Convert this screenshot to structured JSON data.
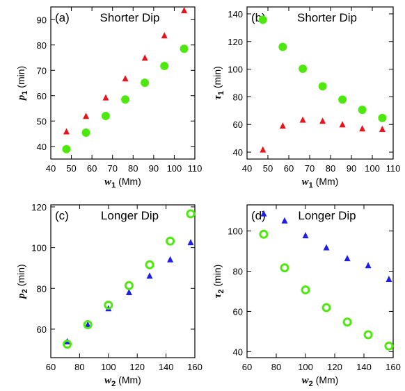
{
  "colors": {
    "triangle_red": "#e8141b",
    "triangle_blue": "#1e1ee6",
    "circle_green": "#4ee80f",
    "axis": "#000000"
  },
  "chart_data": [
    {
      "panel": "(a)",
      "title": "Shorter Dip",
      "type": "scatter",
      "xlabel": {
        "symbol": "w",
        "sub": "1",
        "unit": " (Mm)"
      },
      "ylabel": {
        "symbol": "p",
        "sub": "1",
        "unit": " (min)"
      },
      "xlim": [
        40,
        110
      ],
      "ylim": [
        35,
        95
      ],
      "xticks": [
        40,
        50,
        60,
        70,
        80,
        90,
        100,
        110
      ],
      "yticks": [
        40,
        50,
        60,
        70,
        80,
        90
      ],
      "series": [
        {
          "marker": "triangle",
          "color": "#e8141b",
          "x": [
            47.6,
            57.1,
            66.7,
            76.2,
            85.7,
            95.2,
            104.8
          ],
          "y": [
            45.7,
            51.8,
            59.1,
            66.6,
            74.8,
            83.6,
            93.5
          ]
        },
        {
          "marker": "filled-circle",
          "color": "#4ee80f",
          "x": [
            47.6,
            57.1,
            66.7,
            76.2,
            85.7,
            95.2,
            104.8
          ],
          "y": [
            38.9,
            45.4,
            52.0,
            58.5,
            65.1,
            71.7,
            78.5
          ]
        }
      ]
    },
    {
      "panel": "(b)",
      "title": "Shorter Dip",
      "type": "scatter",
      "xlabel": {
        "symbol": "w",
        "sub": "1",
        "unit": " (Mm)"
      },
      "ylabel": {
        "symbol": "τ",
        "sub": "1",
        "unit": " (min)"
      },
      "xlim": [
        40,
        110
      ],
      "ylim": [
        35,
        145
      ],
      "xticks": [
        40,
        50,
        60,
        70,
        80,
        90,
        100,
        110
      ],
      "yticks": [
        40,
        60,
        80,
        100,
        120,
        140
      ],
      "series": [
        {
          "marker": "triangle",
          "color": "#e8141b",
          "x": [
            47.6,
            57.1,
            66.7,
            76.2,
            85.7,
            95.2,
            104.8
          ],
          "y": [
            41.5,
            58.8,
            63.1,
            62.3,
            59.7,
            56.8,
            56.4
          ]
        },
        {
          "marker": "filled-circle",
          "color": "#4ee80f",
          "x": [
            47.6,
            57.1,
            66.7,
            76.2,
            85.7,
            95.2,
            104.8
          ],
          "y": [
            135.7,
            116.1,
            100.3,
            87.6,
            78.0,
            70.6,
            64.7
          ]
        }
      ]
    },
    {
      "panel": "(c)",
      "title": "Longer Dip",
      "type": "scatter",
      "xlabel": {
        "symbol": "w",
        "sub": "2",
        "unit": " (Mm)"
      },
      "ylabel": {
        "symbol": "p",
        "sub": "2",
        "unit": " (min)"
      },
      "xlim": [
        60,
        160
      ],
      "ylim": [
        46,
        121
      ],
      "xticks": [
        60,
        80,
        100,
        120,
        140,
        160
      ],
      "yticks": [
        60,
        80,
        100,
        120
      ],
      "series": [
        {
          "marker": "triangle",
          "color": "#1e1ee6",
          "x": [
            71.4,
            85.7,
            100.0,
            114.3,
            128.6,
            142.9,
            157.1
          ],
          "y": [
            53.8,
            62.0,
            70.0,
            77.9,
            86.0,
            94.0,
            102.4
          ]
        },
        {
          "marker": "open-circle",
          "color": "#4ee80f",
          "x": [
            71.4,
            85.7,
            100.0,
            114.3,
            128.6,
            142.9,
            157.1
          ],
          "y": [
            52.6,
            62.2,
            71.8,
            81.4,
            91.6,
            103.2,
            116.6
          ]
        }
      ]
    },
    {
      "panel": "(d)",
      "title": "Longer Dip",
      "type": "scatter",
      "xlabel": {
        "symbol": "w",
        "sub": "2",
        "unit": " (Mm)"
      },
      "ylabel": {
        "symbol": "τ",
        "sub": "2",
        "unit": " (min)"
      },
      "xlim": [
        60,
        160
      ],
      "ylim": [
        37,
        113
      ],
      "xticks": [
        60,
        80,
        100,
        120,
        140,
        160
      ],
      "yticks": [
        40,
        60,
        80,
        100
      ],
      "series": [
        {
          "marker": "triangle",
          "color": "#1e1ee6",
          "x": [
            71.4,
            85.7,
            100.0,
            114.3,
            128.6,
            142.9,
            157.1
          ],
          "y": [
            108.5,
            105.0,
            97.6,
            91.6,
            86.2,
            82.7,
            75.9
          ]
        },
        {
          "marker": "open-circle",
          "color": "#4ee80f",
          "x": [
            71.4,
            85.7,
            100.0,
            114.3,
            128.6,
            142.9,
            157.1
          ],
          "y": [
            98.4,
            81.7,
            70.7,
            61.9,
            54.7,
            48.4,
            42.8
          ]
        }
      ]
    }
  ]
}
